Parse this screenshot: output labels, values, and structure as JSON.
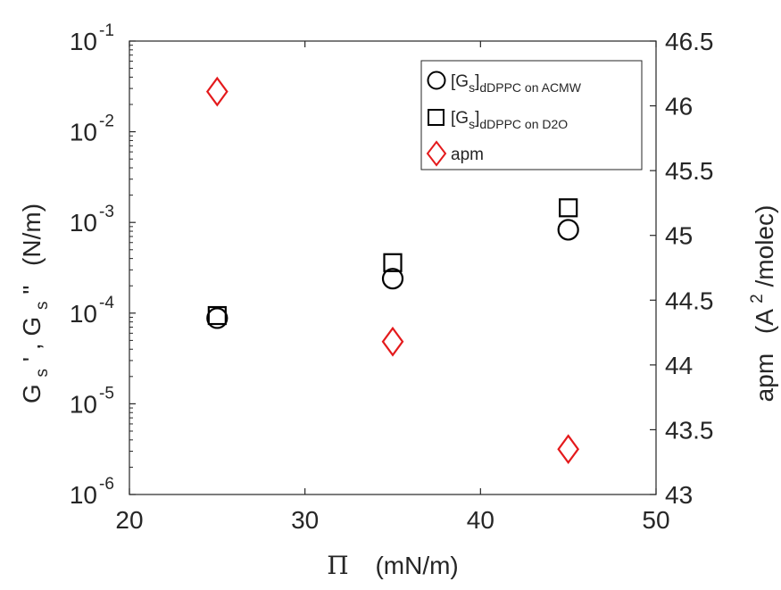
{
  "chart_data": {
    "type": "scatter",
    "x_axis": {
      "label_symbol": "Π",
      "label_unit": "(mN/m)",
      "range": [
        20,
        50
      ],
      "ticks": [
        "20",
        "30",
        "40",
        "50"
      ]
    },
    "y_left": {
      "scale": "log",
      "label": "G_s', G_s\"  (N/m)",
      "label_parts": {
        "g": "G",
        "s": "s",
        "prime": " ' ",
        "comma": ", ",
        "dprime": " \" ",
        "unit": "(N/m)"
      },
      "range": [
        1e-06,
        0.1
      ],
      "ticks": [
        {
          "base": "10",
          "exp": "-6"
        },
        {
          "base": "10",
          "exp": "-5"
        },
        {
          "base": "10",
          "exp": "-4"
        },
        {
          "base": "10",
          "exp": "-3"
        },
        {
          "base": "10",
          "exp": "-2"
        },
        {
          "base": "10",
          "exp": "-1"
        }
      ]
    },
    "y_right": {
      "scale": "linear",
      "label": "apm (A²/molec)",
      "label_parts": {
        "name": "apm",
        "open": "(A",
        "sup": "2",
        "close": "/molec)"
      },
      "range": [
        43,
        46.5
      ],
      "ticks": [
        "43",
        "43.5",
        "44",
        "44.5",
        "45",
        "45.5",
        "46",
        "46.5"
      ]
    },
    "series": [
      {
        "name": "[G_s]_dDPPC on ACMW",
        "legend": {
          "open": "[G",
          "sub1": "s",
          "close": "]",
          "sub2": "dDPPC on ACMW"
        },
        "marker": "circle",
        "color": "#000000",
        "axis": "left",
        "points": [
          {
            "x": 25,
            "y": 8.8e-05
          },
          {
            "x": 35,
            "y": 0.00024
          },
          {
            "x": 45,
            "y": 0.00083
          }
        ]
      },
      {
        "name": "[G_s]_dDPPC on D2O",
        "legend": {
          "open": "[G",
          "sub1": "s",
          "close": "]",
          "sub2": "dDPPC on D2O"
        },
        "marker": "square",
        "color": "#000000",
        "axis": "left",
        "points": [
          {
            "x": 25,
            "y": 9.4e-05
          },
          {
            "x": 35,
            "y": 0.00036
          },
          {
            "x": 45,
            "y": 0.00145
          }
        ]
      },
      {
        "name": "apm",
        "legend": {
          "open": "apm",
          "sub1": "",
          "close": "",
          "sub2": ""
        },
        "marker": "diamond",
        "color": "#e41a1c",
        "axis": "right",
        "points": [
          {
            "x": 25,
            "y": 46.11
          },
          {
            "x": 35,
            "y": 44.18
          },
          {
            "x": 45,
            "y": 43.35
          }
        ]
      }
    ],
    "legend_position": "top-right",
    "grid": false
  }
}
